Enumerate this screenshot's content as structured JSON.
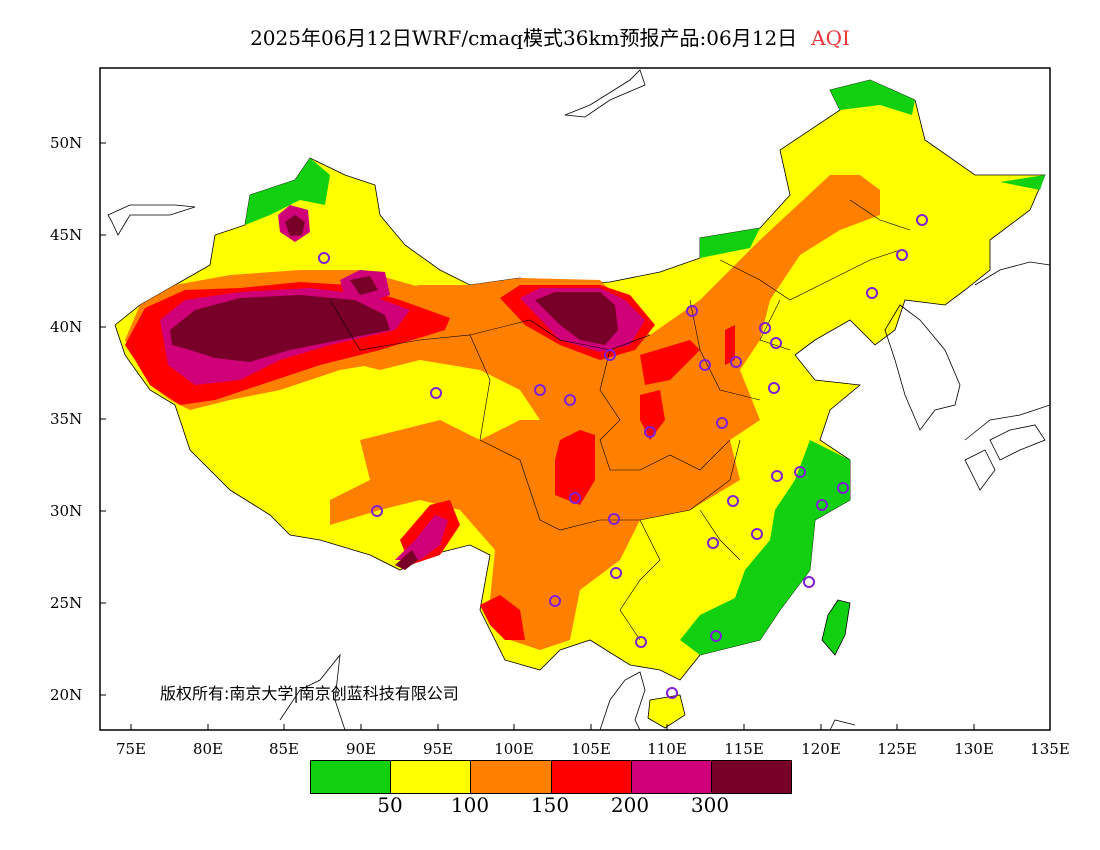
{
  "title": {
    "main": "2025年06月12日WRF/cmaq模式36km预报产品:06月12日",
    "variable": "AQI"
  },
  "copyright": "版权所有:南京大学|南京创蓝科技有限公司",
  "axes": {
    "lat_labels": [
      "50N",
      "45N",
      "40N",
      "35N",
      "30N",
      "25N",
      "20N"
    ],
    "lon_labels": [
      "75E",
      "80E",
      "85E",
      "90E",
      "95E",
      "100E",
      "105E",
      "110E",
      "115E",
      "120E",
      "125E",
      "130E",
      "135E"
    ]
  },
  "legend": {
    "colors": [
      "#10d010",
      "#ffff00",
      "#ff8000",
      "#ff0000",
      "#d00078",
      "#780028"
    ],
    "labels": [
      "50",
      "100",
      "150",
      "200",
      "300"
    ]
  },
  "colors": {
    "good": "#10d010",
    "moderate": "#ffff00",
    "sensitive": "#ff8000",
    "unhealthy": "#ff0000",
    "very_unhealthy": "#d00078",
    "hazardous": "#780028",
    "station": "#8020d0"
  }
}
